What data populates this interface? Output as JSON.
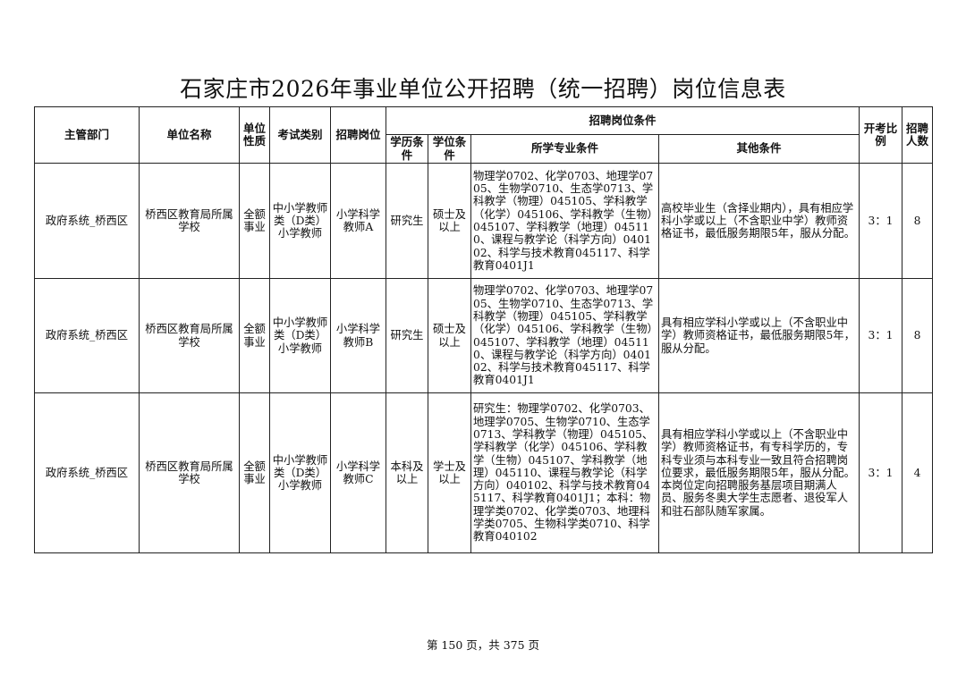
{
  "title": "石家庄市2026年事业单位公开招聘（统一招聘）岗位信息表",
  "headers": {
    "dept": "主管部门",
    "unit": "单位名称",
    "nature": "单位性质",
    "exam_type": "考试类别",
    "post": "招聘岗位",
    "conditions": "招聘岗位条件",
    "education": "学历条件",
    "degree": "学位条件",
    "major": "所学专业条件",
    "other": "其他条件",
    "ratio": "开考比例",
    "count": "招聘人数"
  },
  "rows": [
    {
      "dept": "政府系统_桥西区",
      "unit": "桥西区教育局所属学校",
      "nature": "全额事业",
      "exam_type": "中小学教师类（D类）小学教师",
      "post": "小学科学教师A",
      "education": "研究生",
      "degree": "硕士及以上",
      "major": "物理学0702、化学0703、地理学0705、生物学0710、生态学0713、学科教学（物理）045105、学科教学（化学）045106、学科教学（生物）045107、学科教学（地理）045110、课程与教学论（科学方向）040102、科学与技术教育045117、科学教育0401J1",
      "other": "高校毕业生（含择业期内），具有相应学科小学或以上（不含职业中学）教师资格证书，最低服务期限5年，服从分配。",
      "ratio": "3：1",
      "count": "8"
    },
    {
      "dept": "政府系统_桥西区",
      "unit": "桥西区教育局所属学校",
      "nature": "全额事业",
      "exam_type": "中小学教师类（D类）小学教师",
      "post": "小学科学教师B",
      "education": "研究生",
      "degree": "硕士及以上",
      "major": "物理学0702、化学0703、地理学0705、生物学0710、生态学0713、学科教学（物理）045105、学科教学（化学）045106、学科教学（生物）045107、学科教学（地理）045110、课程与教学论（科学方向）040102、科学与技术教育045117、科学教育0401J1",
      "other": "具有相应学科小学或以上（不含职业中学）教师资格证书，最低服务期限5年，服从分配。",
      "ratio": "3：1",
      "count": "8"
    },
    {
      "dept": "政府系统_桥西区",
      "unit": "桥西区教育局所属学校",
      "nature": "全额事业",
      "exam_type": "中小学教师类（D类）小学教师",
      "post": "小学科学教师C",
      "education": "本科及以上",
      "degree": "学士及以上",
      "major": "研究生：物理学0702、化学0703、地理学0705、生物学0710、生态学0713、学科教学（物理）045105、学科教学（化学）045106、学科教学（生物）045107、学科教学（地理）045110、课程与教学论（科学方向）040102、科学与技术教育045117、科学教育0401J1；本科：物理学类0702、化学类0703、地理科学类0705、生物科学类0710、科学教育040102",
      "other": "具有相应学科小学或以上（不含职业中学）教师资格证书，有专科学历的，专科专业须与本科专业一致且符合招聘岗位要求，最低服务期限5年，服从分配。本岗位定向招聘服务基层项目期满人员、服务冬奥大学生志愿者、退役军人和驻石部队随军家属。",
      "ratio": "3：1",
      "count": "4"
    }
  ],
  "footer": "第 150 页，共 375 页"
}
